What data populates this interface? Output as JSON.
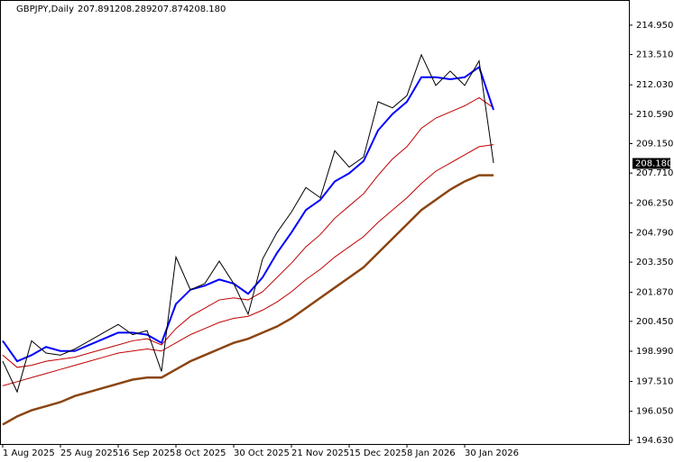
{
  "chart_data": {
    "type": "line",
    "title": "GBPJPY,Daily",
    "ohlc": {
      "values": [
        207.891,
        208.289,
        207.874,
        208.18
      ],
      "value_labels": [
        "207.891",
        "208.289",
        "207.874",
        "208.180"
      ]
    },
    "last_price": 208.18,
    "last_price_label": "208.180",
    "categories": [
      "1 Aug 2025",
      null,
      null,
      null,
      "25 Aug 2025",
      null,
      null,
      null,
      "16 Sep 2025",
      null,
      null,
      null,
      "8 Oct 2025",
      null,
      null,
      null,
      "30 Oct 2025",
      null,
      null,
      null,
      "21 Nov 2025",
      null,
      null,
      null,
      "15 Dec 2025",
      null,
      null,
      null,
      "8 Jan 2026",
      null,
      null,
      null,
      "30 Jan 2026",
      null,
      null
    ],
    "series": [
      {
        "color": "#8b4513",
        "values": [
          195.4,
          195.8,
          196.1,
          196.3,
          196.5,
          196.8,
          197.0,
          197.2,
          197.4,
          197.6,
          197.7,
          197.7,
          198.1,
          198.5,
          198.8,
          199.1,
          199.4,
          199.6,
          199.9,
          200.2,
          200.6,
          201.1,
          201.6,
          202.1,
          202.6,
          203.1,
          203.8,
          204.5,
          205.2,
          205.9,
          206.4,
          206.9,
          207.3,
          207.6,
          207.6
        ]
      },
      {
        "color": "#c00000",
        "values": [
          197.3,
          197.5,
          197.7,
          197.9,
          198.1,
          198.3,
          198.5,
          198.7,
          198.9,
          199.0,
          199.1,
          199.0,
          199.4,
          199.8,
          200.1,
          200.4,
          200.6,
          200.7,
          201.0,
          201.4,
          201.9,
          202.5,
          203.0,
          203.6,
          204.1,
          204.6,
          205.3,
          205.9,
          206.5,
          207.2,
          207.8,
          208.2,
          208.6,
          209.0,
          209.1
        ]
      },
      {
        "color": "#c00000",
        "values": [
          198.8,
          198.2,
          198.3,
          198.5,
          198.6,
          198.7,
          198.9,
          199.1,
          199.3,
          199.5,
          199.6,
          199.3,
          200.1,
          200.7,
          201.1,
          201.5,
          201.6,
          201.5,
          201.9,
          202.6,
          203.3,
          204.1,
          204.7,
          205.5,
          206.1,
          206.7,
          207.6,
          208.4,
          209.0,
          209.9,
          210.4,
          210.7,
          211.0,
          211.4,
          210.9
        ]
      },
      {
        "color": "#0000ff",
        "values": [
          199.5,
          198.5,
          198.8,
          199.2,
          199.0,
          199.0,
          199.3,
          199.6,
          199.9,
          199.9,
          199.8,
          199.4,
          201.3,
          202.0,
          202.2,
          202.5,
          202.3,
          201.8,
          202.6,
          203.8,
          204.8,
          205.9,
          206.4,
          207.3,
          207.7,
          208.3,
          209.8,
          210.6,
          211.2,
          212.4,
          212.4,
          212.3,
          212.4,
          212.9,
          210.8
        ]
      },
      {
        "color": "#000000",
        "values": [
          198.5,
          197.0,
          199.5,
          198.9,
          198.8,
          199.1,
          199.5,
          199.9,
          200.3,
          199.8,
          200.0,
          198.0,
          203.6,
          202.0,
          202.3,
          203.4,
          202.3,
          200.8,
          203.5,
          204.8,
          205.8,
          207.0,
          206.5,
          208.8,
          208.0,
          208.5,
          211.2,
          210.9,
          211.5,
          213.5,
          212.0,
          212.7,
          212.0,
          213.2,
          208.2
        ]
      }
    ],
    "ylim": [
      194.45,
      216.18
    ],
    "yticks": [
      {
        "value": 194.63,
        "label": "194.630"
      },
      {
        "value": 196.05,
        "label": "196.050"
      },
      {
        "value": 197.51,
        "label": "197.510"
      },
      {
        "value": 198.99,
        "label": "198.990"
      },
      {
        "value": 200.45,
        "label": "200.450"
      },
      {
        "value": 201.87,
        "label": "201.870"
      },
      {
        "value": 203.35,
        "label": "203.350"
      },
      {
        "value": 204.79,
        "label": "204.790"
      },
      {
        "value": 206.25,
        "label": "206.250"
      },
      {
        "value": 207.71,
        "label": "207.710"
      },
      {
        "value": 209.15,
        "label": "209.150"
      },
      {
        "value": 210.59,
        "label": "210.590"
      },
      {
        "value": 212.03,
        "label": "212.030"
      },
      {
        "value": 213.51,
        "label": "213.510"
      },
      {
        "value": 214.95,
        "label": "214.950"
      }
    ]
  }
}
